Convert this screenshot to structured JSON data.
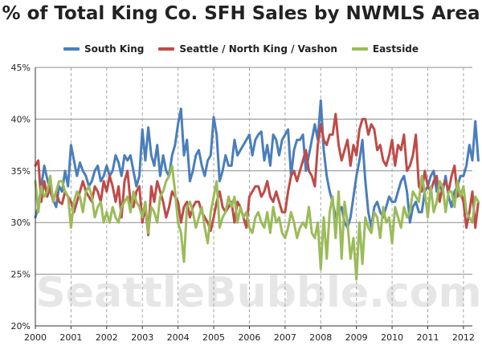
{
  "chart_data": {
    "type": "line",
    "title": "% of Total King Co. SFH Sales by NWMLS Area",
    "xlabel": "",
    "ylabel": "",
    "watermark": "SeattleBubble.com",
    "x_start": "2000-01",
    "x_ticks": [
      "2000",
      "2001",
      "2002",
      "2003",
      "2004",
      "2005",
      "2006",
      "2007",
      "2008",
      "2009",
      "2010",
      "2011",
      "2012"
    ],
    "y_ticks": [
      "20%",
      "25%",
      "30%",
      "35%",
      "40%",
      "45%"
    ],
    "ylim": [
      20,
      45
    ],
    "grid": {
      "horizontal": true,
      "vertical": "dashed"
    },
    "legend_position": "top",
    "series": [
      {
        "name": "South King",
        "color": "#4A7EBB",
        "values": [
          30.5,
          31.5,
          33.5,
          35.5,
          34.2,
          33.0,
          32.2,
          31.5,
          33.5,
          33.0,
          35.0,
          33.5,
          37.5,
          36.0,
          34.5,
          35.8,
          35.0,
          34.5,
          33.5,
          34.0,
          35.0,
          35.5,
          34.0,
          34.5,
          35.5,
          34.5,
          35.0,
          36.5,
          35.8,
          34.5,
          36.5,
          36.0,
          36.5,
          35.0,
          33.5,
          34.5,
          39.0,
          36.0,
          39.2,
          36.5,
          35.5,
          37.5,
          34.5,
          36.5,
          35.0,
          34.5,
          36.5,
          37.5,
          39.5,
          41.0,
          36.5,
          38.0,
          34.0,
          35.0,
          36.5,
          37.0,
          35.5,
          34.5,
          36.0,
          36.5,
          40.2,
          38.5,
          34.0,
          35.0,
          36.5,
          35.5,
          35.5,
          38.0,
          36.5,
          37.0,
          37.5,
          38.0,
          38.5,
          36.5,
          38.0,
          38.5,
          38.8,
          36.0,
          37.5,
          35.5,
          38.5,
          38.0,
          36.5,
          38.0,
          38.5,
          39.0,
          34.5,
          37.0,
          38.0,
          38.0,
          38.5,
          35.0,
          36.5,
          38.0,
          39.5,
          38.0,
          41.8,
          37.0,
          34.5,
          33.0,
          32.0,
          30.5,
          31.0,
          31.5,
          30.0,
          29.5,
          30.5,
          32.5,
          34.5,
          36.0,
          38.0,
          34.0,
          31.0,
          29.5,
          31.5,
          32.0,
          31.0,
          30.5,
          31.5,
          32.5,
          32.0,
          32.0,
          33.0,
          34.0,
          34.5,
          33.0,
          30.0,
          31.5,
          32.0,
          31.0,
          31.0,
          33.0,
          33.5,
          34.5,
          35.0,
          33.0,
          33.5,
          33.0,
          34.5,
          32.5,
          31.5,
          33.0,
          33.5,
          34.5,
          34.5,
          35.5,
          37.5,
          36.0,
          39.8,
          36.0
        ]
      },
      {
        "name": "Seattle / North King / Vashon",
        "color": "#BE4B48",
        "values": [
          35.5,
          36.0,
          32.0,
          34.0,
          32.5,
          33.5,
          32.0,
          33.0,
          32.0,
          31.8,
          33.0,
          32.5,
          32.0,
          31.0,
          32.0,
          33.0,
          34.0,
          33.0,
          32.5,
          32.0,
          33.5,
          33.0,
          32.0,
          34.0,
          33.0,
          34.5,
          33.5,
          32.0,
          33.5,
          30.5,
          34.0,
          35.0,
          32.0,
          31.5,
          33.0,
          33.5,
          30.0,
          31.5,
          28.8,
          33.5,
          32.0,
          34.0,
          33.0,
          32.0,
          30.5,
          31.5,
          33.0,
          32.5,
          32.0,
          30.0,
          31.5,
          32.0,
          30.5,
          31.5,
          32.0,
          32.0,
          31.0,
          30.5,
          30.0,
          29.2,
          30.5,
          32.0,
          33.0,
          31.5,
          31.0,
          31.5,
          32.0,
          30.0,
          32.0,
          31.5,
          30.5,
          29.5,
          32.5,
          33.0,
          33.5,
          33.5,
          32.5,
          33.0,
          34.0,
          32.5,
          32.0,
          33.0,
          32.0,
          31.0,
          31.0,
          33.0,
          34.5,
          35.0,
          34.0,
          35.0,
          36.0,
          37.0,
          35.0,
          34.5,
          33.5,
          37.5,
          39.5,
          38.0,
          37.5,
          38.5,
          38.5,
          40.5,
          37.5,
          36.0,
          37.0,
          38.0,
          35.5,
          37.5,
          36.5,
          39.0,
          40.0,
          40.0,
          38.5,
          39.5,
          39.0,
          37.0,
          37.5,
          36.0,
          35.5,
          36.5,
          38.0,
          35.5,
          37.5,
          37.0,
          38.5,
          35.0,
          35.5,
          36.5,
          38.5,
          33.5,
          33.0,
          35.0,
          33.5,
          33.0,
          34.0,
          34.5,
          32.0,
          33.5,
          34.0,
          33.0,
          34.5,
          35.5,
          32.5,
          33.0,
          32.0,
          29.5,
          31.0,
          33.0,
          29.5,
          32.0
        ]
      },
      {
        "name": "Eastside",
        "color": "#9BBB59",
        "values": [
          34.0,
          31.0,
          33.5,
          32.5,
          33.0,
          34.5,
          32.0,
          33.0,
          34.0,
          34.0,
          33.0,
          32.5,
          29.5,
          32.0,
          33.0,
          32.5,
          31.0,
          33.0,
          33.5,
          32.5,
          30.5,
          31.5,
          32.0,
          30.0,
          31.0,
          30.0,
          31.5,
          30.5,
          30.0,
          31.5,
          32.0,
          32.5,
          31.0,
          33.0,
          32.0,
          31.5,
          30.5,
          32.0,
          29.0,
          31.5,
          31.0,
          30.0,
          32.5,
          33.0,
          34.0,
          34.5,
          35.5,
          33.0,
          30.0,
          29.0,
          26.2,
          31.5,
          32.0,
          31.0,
          29.5,
          30.5,
          31.5,
          29.5,
          28.0,
          31.0,
          32.5,
          34.0,
          29.5,
          30.5,
          31.0,
          32.5,
          31.5,
          32.5,
          30.0,
          31.5,
          30.5,
          31.0,
          29.5,
          29.0,
          30.5,
          31.0,
          30.0,
          29.5,
          31.0,
          29.0,
          31.5,
          30.0,
          30.5,
          29.0,
          28.5,
          29.5,
          31.0,
          30.0,
          28.5,
          29.5,
          30.0,
          29.5,
          31.5,
          29.0,
          28.5,
          30.0,
          25.5,
          30.5,
          26.5,
          31.0,
          32.5,
          28.5,
          33.0,
          26.5,
          32.0,
          30.0,
          26.5,
          28.5,
          24.5,
          30.0,
          26.0,
          30.5,
          29.5,
          29.0,
          31.0,
          30.5,
          28.5,
          31.5,
          30.0,
          30.5,
          28.0,
          31.5,
          30.5,
          29.5,
          31.5,
          30.5,
          31.0,
          33.0,
          32.5,
          32.0,
          34.5,
          33.0,
          30.5,
          33.5,
          31.0,
          32.0,
          34.0,
          33.5,
          31.0,
          33.0,
          33.0,
          31.5,
          34.0,
          32.5,
          33.5,
          31.0,
          30.5,
          30.0,
          32.5,
          32.0
        ]
      }
    ]
  }
}
